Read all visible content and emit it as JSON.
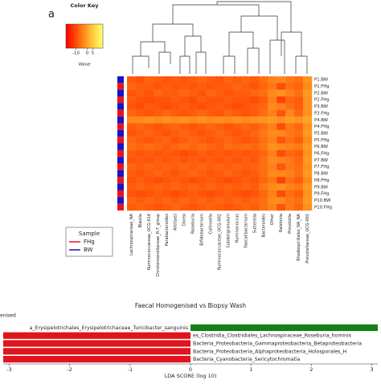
{
  "chart_data": [
    {
      "type": "heatmap",
      "panel_label": "a",
      "color_key_title": "Color Key",
      "color_key_label": "Value",
      "color_key_lim": [
        -19,
        14
      ],
      "color_key_ticks": [
        -10,
        0,
        5
      ],
      "rows": [
        "P1.BW",
        "P1.FHg",
        "P2.BW",
        "P2.FHg",
        "P3.BW",
        "P3.FHg",
        "P4.BW",
        "P4.FHg",
        "P5.BW",
        "P5.FHg",
        "P6.BW",
        "P6.FHg",
        "P7.BW",
        "P7.FHg",
        "P8.BW",
        "P8.FHg",
        "P9.BW",
        "P9.FHg",
        "P10.BW",
        "P10.FHg"
      ],
      "row_groups": [
        "BW",
        "FHg",
        "BW",
        "FHg",
        "BW",
        "FHg",
        "BW",
        "FHg",
        "BW",
        "FHg",
        "BW",
        "FHg",
        "BW",
        "FHg",
        "BW",
        "FHg",
        "BW",
        "FHg",
        "BW",
        "FHg"
      ],
      "columns": [
        "Lachnospiraceae_NA",
        "Blautia",
        "Ruminococcaceae_UCG-014",
        "Christensenellaceae_R-7_group",
        "Parabacteroides",
        "Alistipes",
        "Dorea",
        "Roseburia",
        "Bifidobacterium",
        "Collinsella",
        "Ruminococcaceae_UCG-002",
        "Subdoligranulum",
        "Ruminococcus",
        "Faecalibacterium",
        "Sutterella",
        "Bacteroides",
        "Other",
        "Ralstonia",
        "Prevotella",
        "Rhodospirillales_NA_NA",
        "Prevotellaceae_UCG-001"
      ],
      "legend_title": "Sample",
      "groups": [
        {
          "name": "FHg",
          "color": "#e8141c"
        },
        {
          "name": "BW",
          "color": "#1414c8"
        }
      ],
      "values": [
        [
          -8,
          -9,
          -7,
          -8,
          -9,
          -8,
          -9,
          -8,
          -7,
          -8,
          -9,
          -7,
          -8,
          -7,
          -8,
          -6,
          -4,
          -3,
          -5,
          -6,
          -2
        ],
        [
          -7,
          -8,
          -8,
          -9,
          -8,
          -9,
          -8,
          -9,
          -8,
          -9,
          -8,
          -8,
          -7,
          -8,
          -9,
          -7,
          -5,
          -10,
          -6,
          -7,
          -3
        ],
        [
          -9,
          -8,
          -9,
          -7,
          -8,
          -8,
          -7,
          -8,
          -9,
          -7,
          -8,
          -9,
          -8,
          -8,
          -7,
          -6,
          -3,
          -2,
          -4,
          -6,
          -1
        ],
        [
          -8,
          -9,
          -10,
          -9,
          -9,
          -8,
          -9,
          -10,
          -8,
          -9,
          -9,
          -8,
          -9,
          -9,
          -10,
          -8,
          -4,
          -11,
          -7,
          -8,
          -2
        ],
        [
          -9,
          -10,
          -8,
          -9,
          -10,
          -9,
          -8,
          -9,
          -10,
          -9,
          -8,
          -9,
          -10,
          -9,
          -8,
          -7,
          -3,
          -4,
          -6,
          -8,
          -2
        ],
        [
          -7,
          -8,
          -9,
          -8,
          -7,
          -8,
          -9,
          -8,
          -7,
          -8,
          -9,
          -7,
          -8,
          -9,
          -8,
          -6,
          -4,
          -9,
          -3,
          -7,
          -2
        ],
        [
          -3,
          -3,
          -2,
          -3,
          -2,
          -3,
          -2,
          -3,
          -2,
          -3,
          -2,
          -3,
          -2,
          -3,
          -2,
          -2,
          -1,
          -2,
          -1,
          -2,
          0
        ],
        [
          -8,
          -7,
          -8,
          -9,
          -8,
          -7,
          -8,
          -9,
          -8,
          -7,
          -8,
          -9,
          -8,
          -7,
          -8,
          -6,
          -4,
          -10,
          -5,
          -7,
          -2
        ],
        [
          -9,
          -8,
          -7,
          -8,
          -9,
          -8,
          -7,
          -8,
          -9,
          -8,
          -7,
          -8,
          -9,
          -8,
          -7,
          -5,
          -3,
          -3,
          -5,
          -6,
          -1
        ],
        [
          -7,
          -8,
          -9,
          -8,
          -7,
          -9,
          -8,
          -7,
          -8,
          -9,
          -8,
          -7,
          -8,
          -9,
          -8,
          -6,
          -4,
          -9,
          -6,
          -8,
          -3
        ],
        [
          -6,
          -7,
          -6,
          -7,
          -8,
          -7,
          -6,
          -7,
          -6,
          -7,
          -8,
          -6,
          -7,
          -6,
          -7,
          -5,
          -2,
          -3,
          -4,
          -5,
          -1
        ],
        [
          -8,
          -9,
          -8,
          -9,
          -8,
          -9,
          -10,
          -9,
          -8,
          -9,
          -8,
          -9,
          -8,
          -9,
          -8,
          -7,
          -4,
          -10,
          -7,
          -8,
          -2
        ],
        [
          -9,
          -8,
          -9,
          -8,
          -9,
          -8,
          -9,
          -8,
          -9,
          -8,
          -9,
          -8,
          -9,
          -8,
          -9,
          -6,
          -3,
          -4,
          -5,
          -7,
          -1
        ],
        [
          -7,
          -8,
          -7,
          -8,
          -7,
          -8,
          -7,
          -8,
          -7,
          -8,
          -7,
          -8,
          -7,
          -8,
          -7,
          -6,
          -4,
          -9,
          -5,
          -6,
          -2
        ],
        [
          -8,
          -9,
          -8,
          -7,
          -8,
          -9,
          -8,
          -7,
          -8,
          -9,
          -8,
          -7,
          -8,
          -9,
          -8,
          -6,
          -3,
          -3,
          -4,
          -6,
          -1
        ],
        [
          -9,
          -8,
          -9,
          -10,
          -9,
          -8,
          -9,
          -10,
          -9,
          -8,
          -9,
          -10,
          -9,
          -8,
          -9,
          -7,
          -5,
          -11,
          -6,
          -8,
          -3
        ],
        [
          -8,
          -7,
          -8,
          -7,
          -8,
          -7,
          -8,
          -7,
          -8,
          -7,
          -8,
          -7,
          -8,
          -7,
          -8,
          -5,
          -3,
          -2,
          -4,
          -5,
          -1
        ],
        [
          -9,
          -10,
          -9,
          -8,
          -9,
          -10,
          -9,
          -8,
          -9,
          -10,
          -9,
          -8,
          -9,
          -10,
          -9,
          -7,
          -4,
          -10,
          -6,
          -8,
          -2
        ],
        [
          -7,
          -8,
          -7,
          -8,
          -7,
          -8,
          -7,
          -8,
          -7,
          -8,
          -7,
          -8,
          -7,
          -8,
          -7,
          -6,
          -3,
          -3,
          -5,
          -6,
          -1
        ],
        [
          -8,
          -7,
          -8,
          -9,
          -8,
          -7,
          -8,
          -9,
          -8,
          -7,
          -8,
          -9,
          -8,
          -7,
          -8,
          -6,
          -4,
          -9,
          -5,
          -7,
          -2
        ]
      ]
    },
    {
      "type": "lda_bar",
      "title": "Faecal Homogenised vs Biopsy Wash",
      "legend_text": "enised",
      "x_label": "LDA SCORE (log 10)",
      "xlim": [
        -3.1,
        3.1
      ],
      "xticks": [
        -3,
        -2,
        -1,
        0,
        1,
        2,
        3
      ],
      "positive_color": "#138013",
      "negative_color": "#e0141c",
      "categories": [
        "a_Erysipelotrichales_Erysipelotrichaceae_Turicibacter_sanguinis",
        "es_Clostridia_Clostridiales_Lachnospiraceae_Roseburia_hominis",
        "Bacteria_Proteobacteria_Gammaproteobacteria_Betaproteobacteria",
        "Bacteria_Proteobacteria_Alphaproteobacteria_Holosporales_H",
        "Bacteria_Cyanobacteria_Sericytochromatia"
      ],
      "values": [
        3.1,
        -3.1,
        -3.1,
        -3.1,
        -3.1
      ]
    }
  ]
}
